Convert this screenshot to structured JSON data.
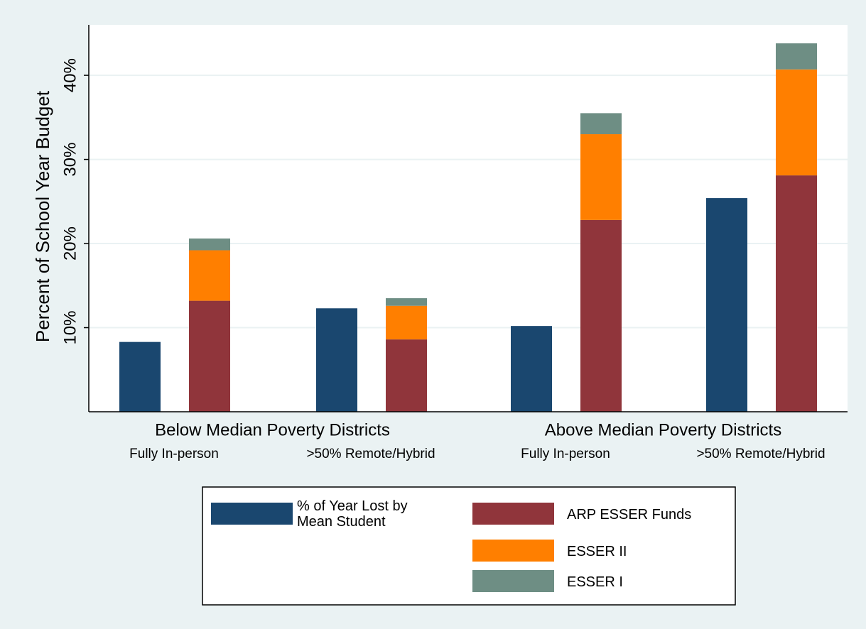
{
  "chart_data": {
    "type": "bar",
    "y_label": "Percent of School Year Budget",
    "groups": [
      "Below Median Poverty Districts",
      "Above Median Poverty Districts"
    ],
    "categories": [
      "Fully In-person",
      ">50% Remote/Hybrid",
      "Fully In-person",
      ">50% Remote/Hybrid"
    ],
    "series": [
      {
        "name": "% of Year Lost by Mean Student",
        "color": "#1a476f",
        "stacked": false,
        "values": [
          8.3,
          12.3,
          10.2,
          25.4
        ]
      },
      {
        "name": "ARP ESSER Funds",
        "color": "#90353b",
        "stacked": true,
        "values": [
          13.2,
          8.6,
          22.8,
          28.1
        ]
      },
      {
        "name": "ESSER II",
        "color": "#ff7f00",
        "stacked": true,
        "values": [
          6.0,
          4.0,
          10.2,
          12.6
        ]
      },
      {
        "name": "ESSER I",
        "color": "#6e8e84",
        "stacked": true,
        "values": [
          1.4,
          0.9,
          2.5,
          3.1
        ]
      }
    ],
    "ylim": [
      0,
      46
    ],
    "yticks": [
      {
        "value": 10,
        "label": "10%"
      },
      {
        "value": 20,
        "label": "20%"
      },
      {
        "value": 30,
        "label": "30%"
      },
      {
        "value": 40,
        "label": "40%"
      }
    ],
    "grid": true
  }
}
